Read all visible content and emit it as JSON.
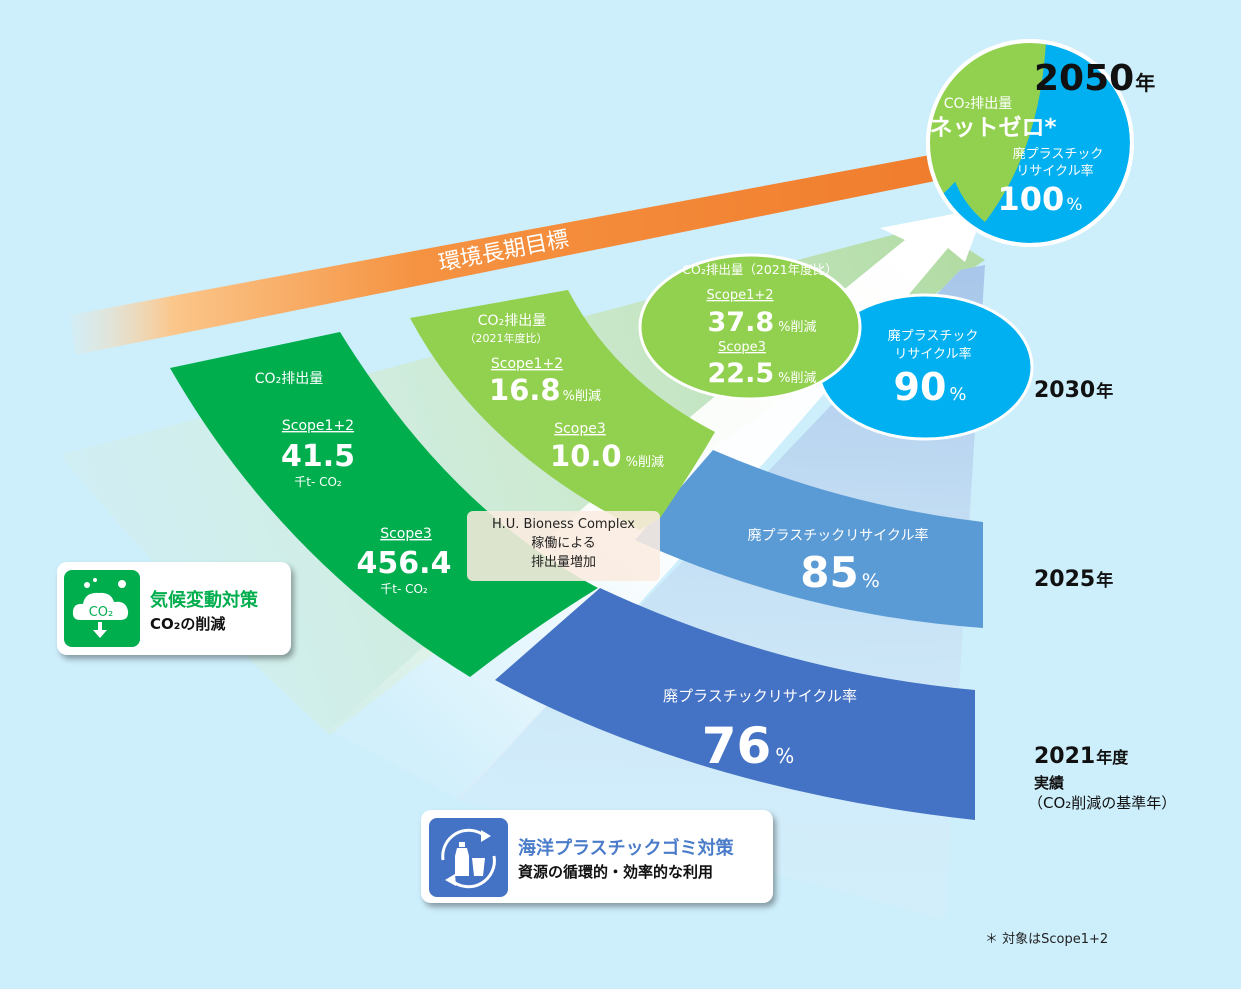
{
  "years": {
    "y2050": {
      "num": "2050",
      "suffix": "年"
    },
    "y2030": {
      "num": "2030",
      "suffix": "年"
    },
    "y2025": {
      "num": "2025",
      "suffix": "年"
    },
    "y2021": {
      "num": "2021",
      "suffix": "年度",
      "line2": "実績",
      "line3": "（CO₂削減の基準年）"
    }
  },
  "arrow_label": "環境長期目標",
  "band_2021": {
    "co2_title": "CO₂排出量",
    "scope12_label": "Scope1+2",
    "scope12_value": "41.5",
    "scope12_unit": "千t- CO₂",
    "scope3_label": "Scope3",
    "scope3_value": "456.4",
    "scope3_unit": "千t- CO₂",
    "plastic_title": "廃プラスチックリサイクル率",
    "plastic_value": "76",
    "plastic_unit": "%"
  },
  "band_2025": {
    "co2_title": "CO₂排出量",
    "co2_sub": "（2021年度比）",
    "scope12_label": "Scope1+2",
    "scope12_value": "16.8",
    "scope12_unit": "%削減",
    "scope3_label": "Scope3",
    "scope3_value": "10.0",
    "scope3_unit": "%削減",
    "plastic_title": "廃プラスチックリサイクル率",
    "plastic_value": "85",
    "plastic_unit": "%"
  },
  "band_2030": {
    "co2_title": "CO₂排出量（2021年度比）",
    "scope12_label": "Scope1+2",
    "scope12_value": "37.8",
    "scope12_unit": "%削減",
    "scope3_label": "Scope3",
    "scope3_value": "22.5",
    "scope3_unit": "%削減",
    "plastic_line1": "廃プラスチック",
    "plastic_line2": "リサイクル率",
    "plastic_value": "90",
    "plastic_unit": "%"
  },
  "goal_2050": {
    "co2_title": "CO₂排出量",
    "co2_value": "ネットゼロ*",
    "plastic_line1": "廃プラスチック",
    "plastic_line2": "リサイクル率",
    "plastic_value": "100",
    "plastic_unit": "%"
  },
  "hu_box": {
    "line1": "H.U. Bioness Complex",
    "line2": "稼働による",
    "line3": "排出量増加"
  },
  "legend_climate": {
    "title": "気候変動対策",
    "subtitle": "CO₂の削減",
    "icon_text": "CO₂"
  },
  "legend_plastic": {
    "title": "海洋プラスチックゴミ対策",
    "subtitle": "資源の循環的・効率的な利用"
  },
  "note": "＊ 対象はScope1+2",
  "colors": {
    "background": "#cdeefb",
    "green_dark": "#00ae4e",
    "green_light": "#92d04f",
    "blue_mid": "#5b9bd5",
    "blue_dark": "#4472c4",
    "cyan": "#00b0f0",
    "orange": "#f07d2d",
    "legend_plastic_text": "#4a7cc9"
  }
}
